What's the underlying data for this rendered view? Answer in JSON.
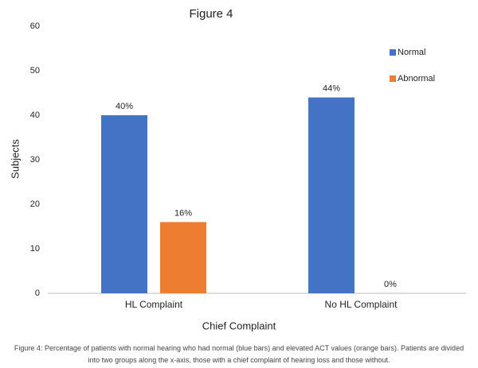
{
  "chart_data": {
    "type": "bar",
    "title": "Figure 4",
    "categories": [
      "HL Complaint",
      "No HL Complaint"
    ],
    "series": [
      {
        "name": "Normal",
        "color": "#4472c4",
        "values": [
          40,
          44
        ],
        "value_labels": [
          "40%",
          "44%"
        ]
      },
      {
        "name": "Abnormal",
        "color": "#ed7d31",
        "values": [
          16,
          0
        ],
        "value_labels": [
          "16%",
          "0%"
        ]
      }
    ],
    "x_label": "Chief Complaint",
    "y_label": "Subjects",
    "ylim": [
      0,
      60
    ],
    "yticks": [
      0,
      10,
      20,
      30,
      40,
      50,
      60
    ],
    "grid": false,
    "legend": "upper right",
    "caption": "Figure 4: Percentage of patients with normal hearing who had normal (blue bars) and elevated ACT values (orange bars). Patients are divided into two groups along the x-axis, those with a chief complaint of hearing loss and those without."
  }
}
